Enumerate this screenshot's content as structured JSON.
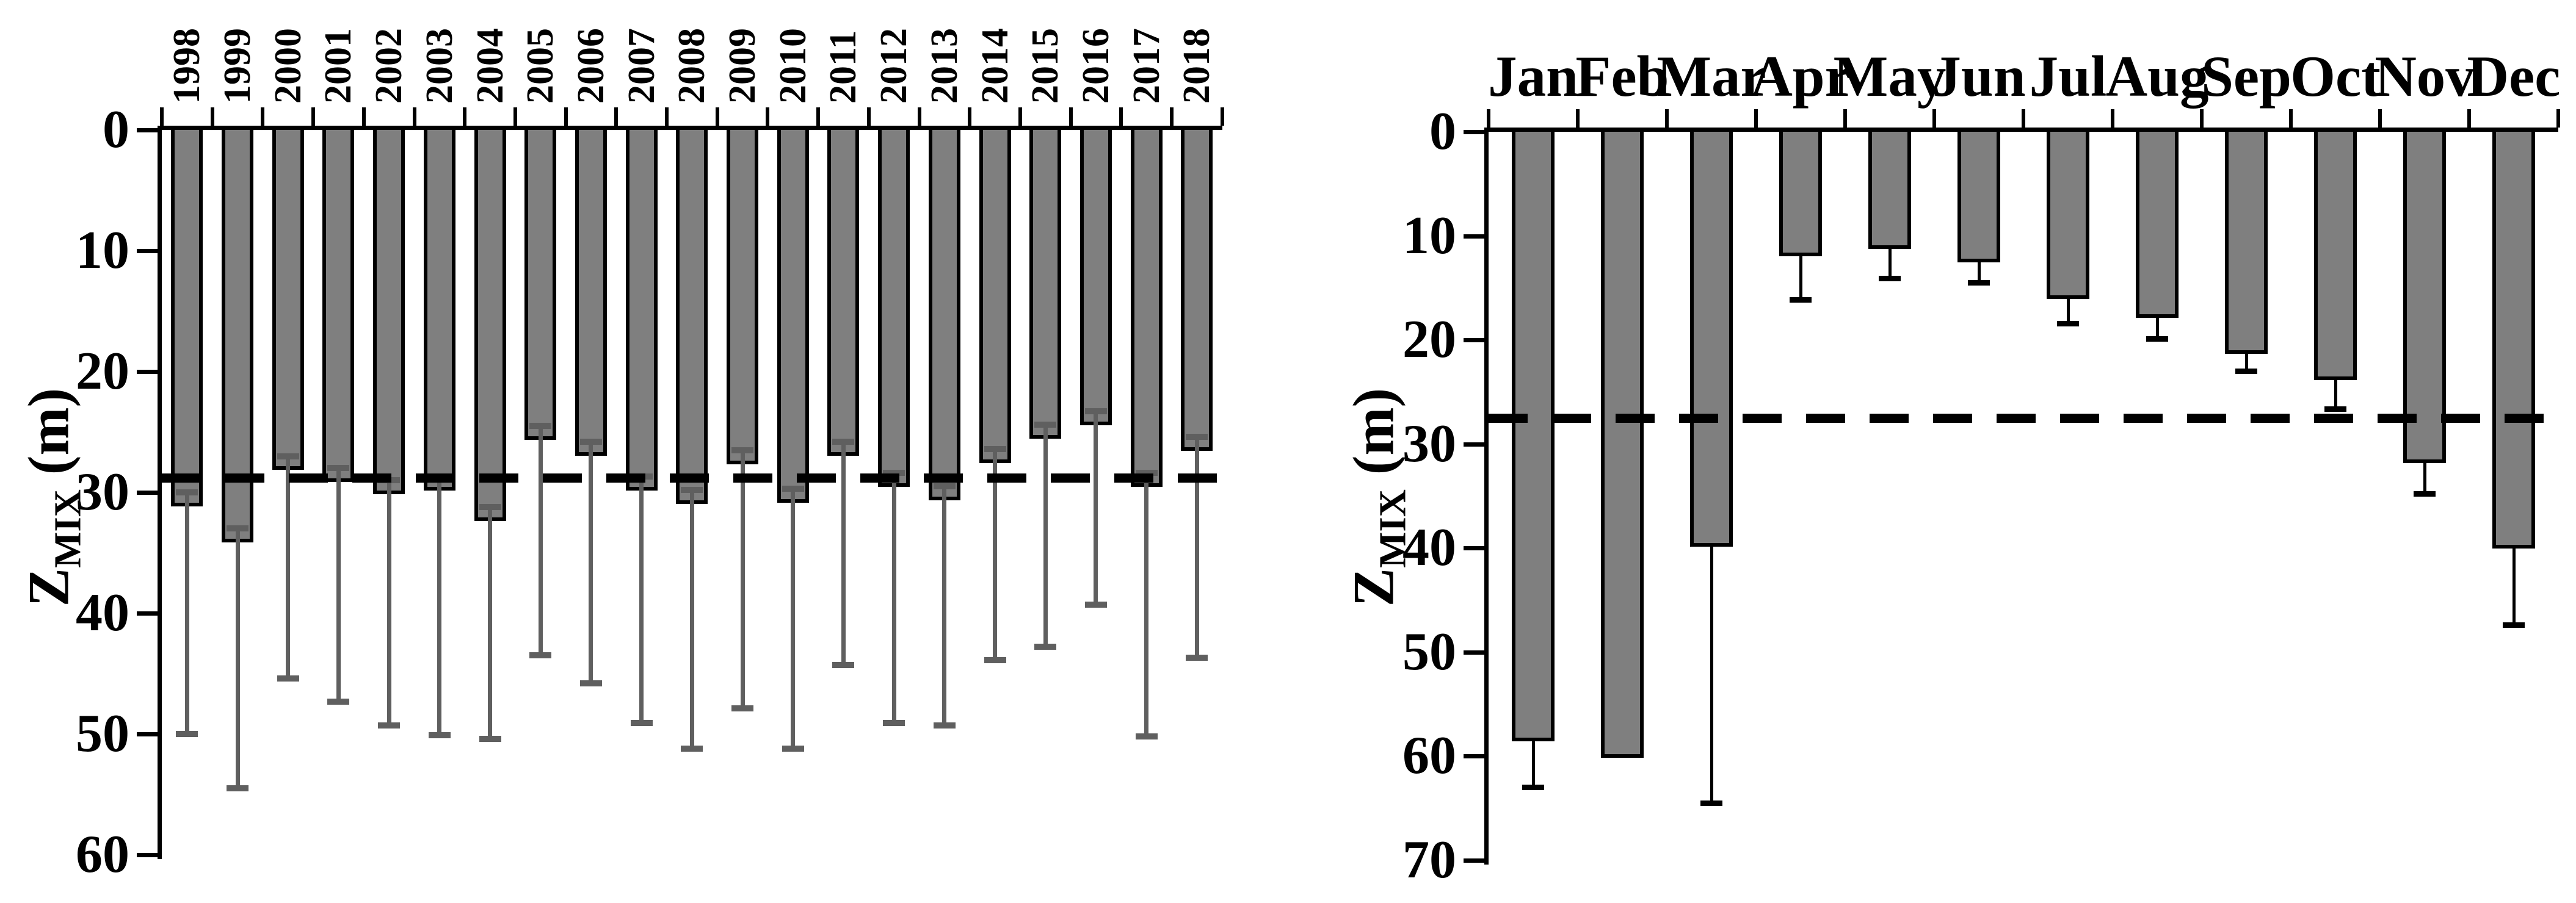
{
  "figure": {
    "background": "#FFFFFF",
    "bar_fill_color": "#7F7F7F",
    "bar_outline_color": "#000000",
    "annual_whisker_color": "#5F5F5F",
    "monthly_whisker_color": "#000000",
    "dashed_line_color": "#000000"
  },
  "chart_data": [
    {
      "id": "annual",
      "type": "bar",
      "orientation": "depth-down",
      "ylabel": {
        "main": "Z",
        "sub": "MIX",
        "unit": "(m)"
      },
      "categories": [
        "1998",
        "1999",
        "2000",
        "2001",
        "2002",
        "2003",
        "2004",
        "2005",
        "2006",
        "2007",
        "2008",
        "2009",
        "2010",
        "2011",
        "2012",
        "2013",
        "2014",
        "2015",
        "2016",
        "2017",
        "2018"
      ],
      "values": [
        31.0,
        34.0,
        28.0,
        29.0,
        30.0,
        29.7,
        32.2,
        25.5,
        26.8,
        29.7,
        30.8,
        27.5,
        30.7,
        26.8,
        29.4,
        30.5,
        27.4,
        25.4,
        24.3,
        29.4,
        26.4
      ],
      "error_low": [
        50.0,
        54.5,
        45.4,
        47.3,
        49.3,
        50.1,
        50.4,
        43.5,
        45.8,
        49.1,
        51.2,
        47.9,
        51.2,
        44.3,
        49.1,
        49.3,
        43.9,
        42.8,
        39.3,
        50.2,
        43.7
      ],
      "error_cap_offset": 1.0,
      "error_style": "range-gray",
      "dashed_line": 28.8,
      "ylim": [
        0,
        60
      ],
      "yticks": [
        0,
        10,
        20,
        30,
        40,
        50,
        60
      ],
      "grid": "off",
      "legend": "none"
    },
    {
      "id": "monthly",
      "type": "bar",
      "orientation": "depth-down",
      "ylabel": {
        "main": "Z",
        "sub": "MIX",
        "unit": "(m)"
      },
      "categories": [
        "Jan",
        "Feb",
        "Mar",
        "Apr",
        "May",
        "Jun",
        "Jul",
        "Aug",
        "Sep",
        "Oct",
        "Nov",
        "Dec"
      ],
      "values": [
        58.4,
        60.0,
        39.7,
        11.8,
        11.1,
        12.4,
        15.9,
        17.7,
        21.2,
        23.7,
        31.7,
        39.9
      ],
      "error_low": [
        63.0,
        null,
        64.5,
        16.1,
        14.1,
        14.5,
        18.4,
        19.9,
        23.0,
        26.6,
        34.8,
        47.4
      ],
      "error_style": "sd-black",
      "dashed_line": 27.5,
      "ylim": [
        0,
        70
      ],
      "yticks": [
        0,
        10,
        20,
        30,
        40,
        50,
        60,
        70
      ],
      "grid": "off",
      "legend": "none"
    }
  ]
}
